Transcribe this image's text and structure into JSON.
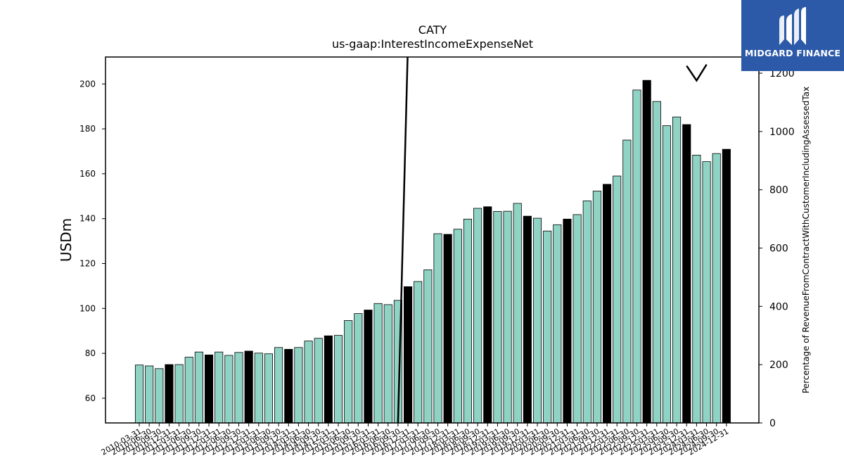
{
  "chart_data": {
    "type": "bar",
    "title": "CATY",
    "subtitle": "us-gaap:InterestIncomeExpenseNet",
    "ylabel": "USDm",
    "y2label": "Percentage of RevenueFromContractWithCustomerIncludingAssessedTax",
    "ylim": [
      49,
      212
    ],
    "y2lim": [
      0,
      1200
    ],
    "yticks": [
      60,
      80,
      100,
      120,
      140,
      160,
      180,
      200
    ],
    "y2ticks": [
      0,
      200,
      400,
      600,
      800,
      1000,
      1200
    ],
    "categories": [
      "2010-03-31",
      "2010-06-30",
      "2010-09-30",
      "2010-12-31",
      "2011-03-31",
      "2011-06-30",
      "2011-09-30",
      "2011-12-31",
      "2012-03-31",
      "2012-06-30",
      "2012-09-30",
      "2012-12-31",
      "2013-03-31",
      "2013-06-30",
      "2013-09-30",
      "2013-12-31",
      "2014-03-31",
      "2014-06-30",
      "2014-09-30",
      "2014-12-31",
      "2015-03-31",
      "2015-06-30",
      "2015-09-30",
      "2015-12-31",
      "2016-03-31",
      "2016-06-30",
      "2016-09-30",
      "2016-12-31",
      "2017-03-31",
      "2017-06-30",
      "2017-09-30",
      "2017-12-31",
      "2018-03-31",
      "2018-06-30",
      "2018-09-30",
      "2018-12-31",
      "2019-03-31",
      "2019-06-30",
      "2019-09-30",
      "2019-12-31",
      "2020-03-31",
      "2020-06-30",
      "2020-09-30",
      "2020-12-31",
      "2021-03-31",
      "2021-06-30",
      "2021-09-30",
      "2021-12-31",
      "2022-03-31",
      "2022-06-30",
      "2022-09-30",
      "2022-12-31",
      "2023-03-31",
      "2023-06-30",
      "2023-09-30",
      "2023-12-31",
      "2024-03-31",
      "2024-06-30",
      "2024-09-30",
      "2024-12-31"
    ],
    "values": [
      74.8,
      74.4,
      73.2,
      75.0,
      75.0,
      78.3,
      80.6,
      79.3,
      80.6,
      79.1,
      80.4,
      81.0,
      80.1,
      79.8,
      82.6,
      81.8,
      82.6,
      85.5,
      86.7,
      87.8,
      88.0,
      94.6,
      97.7,
      99.3,
      102.2,
      101.7,
      103.6,
      109.7,
      112.0,
      117.2,
      133.3,
      133.0,
      135.3,
      139.8,
      144.6,
      145.3,
      143.2,
      143.3,
      146.8,
      141.1,
      140.2,
      134.5,
      137.3,
      139.8,
      141.8,
      147.9,
      152.3,
      155.3,
      159.0,
      175.0,
      197.3,
      201.6,
      192.2,
      181.4,
      185.3,
      181.9,
      168.3,
      165.4,
      169.0,
      170.9
    ],
    "dark_bars": [
      3,
      7,
      11,
      15,
      19,
      23,
      27,
      31,
      35,
      39,
      43,
      47,
      51,
      55,
      59
    ],
    "ratio_line": {
      "x": [
        "2016-09-30",
        "2016-12-31"
      ],
      "y2": [
        0,
        1300
      ]
    },
    "ratio_line_2": {
      "x": [
        "2023-12-31",
        "2024-03-31",
        "2024-06-30"
      ],
      "y2": [
        1225,
        1175,
        1230
      ]
    },
    "colors": {
      "bar": "#8fd3c4",
      "bar_dark": "#000000",
      "edge": "#000000",
      "line": "#000000"
    }
  },
  "logo": {
    "text": "MIDGARD FINANCE"
  }
}
